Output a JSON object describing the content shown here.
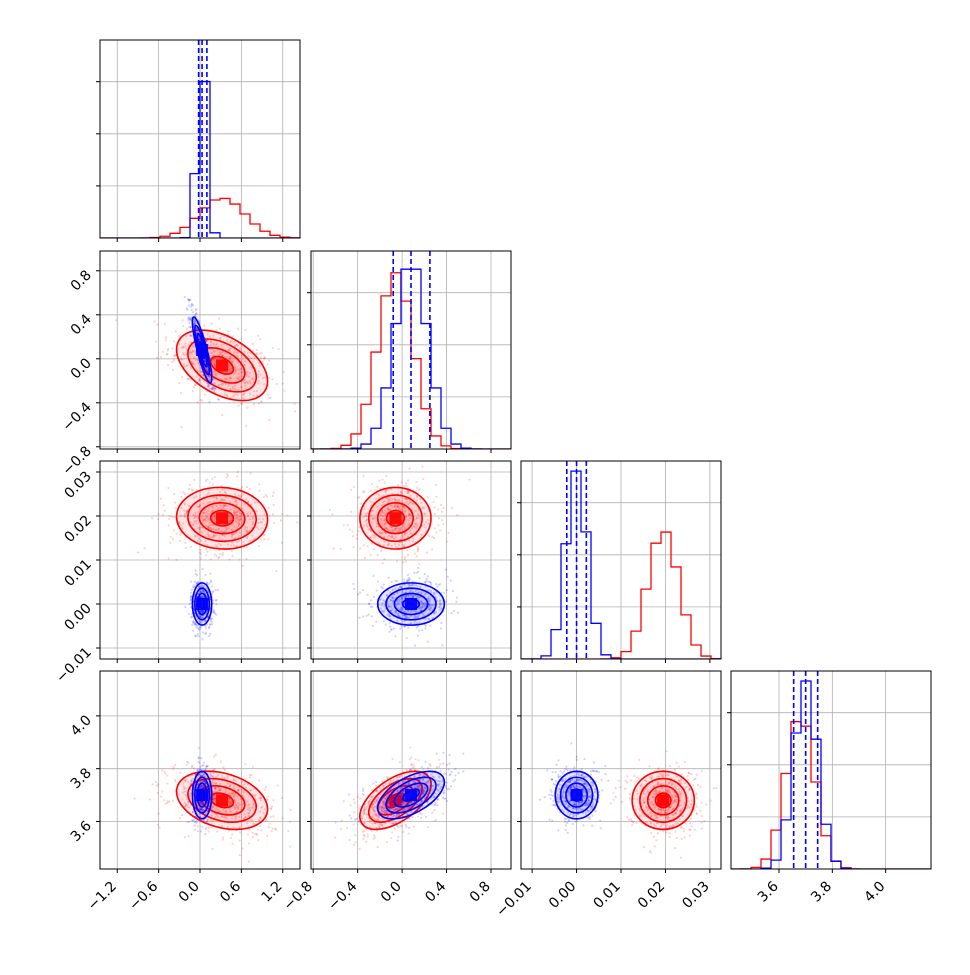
{
  "chart_data": {
    "type": "scatter",
    "colors": {
      "series_a": "#ff0000",
      "series_b": "#0000ff"
    },
    "params": [
      {
        "range": [
          -1.45,
          1.45
        ],
        "ticks": [
          "−1.2",
          "−0.6",
          "0.0",
          "0.6",
          "1.2"
        ],
        "tick_values": [
          -1.2,
          -0.6,
          0.0,
          0.6,
          1.2
        ]
      },
      {
        "range": [
          -0.82,
          0.98
        ],
        "ticks": [
          "−0.8",
          "−0.4",
          "0.0",
          "0.4",
          "0.8"
        ],
        "tick_values": [
          -0.8,
          -0.4,
          0.0,
          0.4,
          0.8
        ]
      },
      {
        "range": [
          -0.0125,
          0.0325
        ],
        "ticks": [
          "−0.01",
          "0.00",
          "0.01",
          "0.02",
          "0.03"
        ],
        "tick_values": [
          -0.01,
          0.0,
          0.01,
          0.02,
          0.03
        ]
      },
      {
        "range": [
          3.42,
          4.17
        ],
        "ticks": [
          "3.6",
          "3.8",
          "4.0"
        ],
        "tick_values": [
          3.6,
          3.8,
          4.0
        ]
      }
    ],
    "series": [
      {
        "color": "#ff0000",
        "mean": [
          0.32,
          -0.06,
          0.0195,
          3.68
        ],
        "std": [
          0.33,
          0.16,
          0.0035,
          0.055
        ],
        "corr": {
          "0-1": -0.45,
          "0-2": -0.05,
          "0-3": -0.3,
          "1-2": 0.0,
          "1-3": 0.55,
          "2-3": 0.0
        }
      },
      {
        "color": "#0000ff",
        "mean": [
          0.03,
          0.08,
          0.0,
          3.7
        ],
        "std": [
          0.07,
          0.15,
          0.0024,
          0.045
        ],
        "corr": {
          "0-1": -0.85,
          "0-2": 0.0,
          "0-3": 0.0,
          "1-2": 0.0,
          "1-3": 0.55,
          "2-3": 0.0
        }
      }
    ],
    "quantile_lines": [
      {
        "param": 0,
        "values": [
          -0.02,
          0.03,
          0.1
        ]
      },
      {
        "param": 1,
        "values": [
          -0.08,
          0.08,
          0.25
        ]
      },
      {
        "param": 2,
        "values": [
          -0.0022,
          0.0,
          0.0022
        ]
      },
      {
        "param": 3,
        "values": [
          3.655,
          3.7,
          3.745
        ]
      }
    ]
  }
}
